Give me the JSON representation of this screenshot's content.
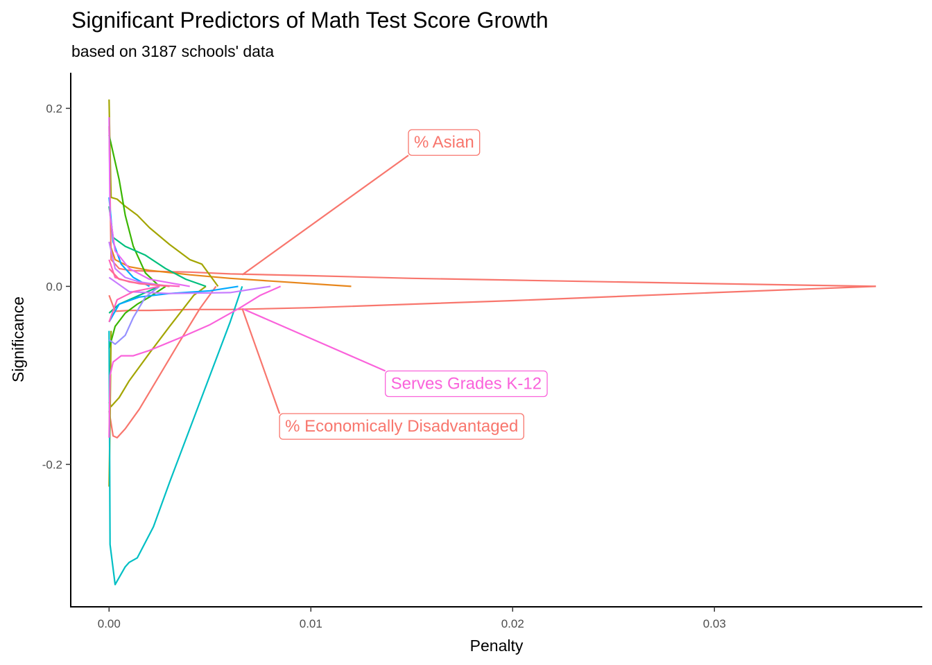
{
  "chart_data": {
    "type": "line",
    "title": "Significant Predictors of Math Test Score Growth",
    "subtitle": "based on 3187 schools' data",
    "xlabel": "Penalty",
    "ylabel": "Significance",
    "xlim": [
      -0.0019,
      0.0403
    ],
    "ylim": [
      -0.36,
      0.24
    ],
    "x_ticks": [
      0,
      0.01,
      0.02,
      0.03
    ],
    "x_tick_labels": [
      "0.00",
      "0.01",
      "0.02",
      "0.03"
    ],
    "y_ticks": [
      -0.2,
      0,
      0.2
    ],
    "y_tick_labels": [
      "-0.2",
      "0.0",
      "0.2"
    ],
    "grid": false,
    "legend": "none",
    "series": [
      {
        "color": "#F8766D",
        "x": [
          0,
          0.0001,
          0.0005,
          0.001,
          0.002,
          0.004,
          0.006,
          0.01,
          0.015,
          0.02,
          0.03,
          0.038
        ],
        "y": [
          0.18,
          0.03,
          0.02,
          0.018,
          0.017,
          0.016,
          0.014,
          0.012,
          0.009,
          0.007,
          0.003,
          0
        ]
      },
      {
        "color": "#F8766D",
        "x": [
          0,
          0.0003,
          0.001,
          0.002,
          0.004,
          0.006,
          0.01,
          0.02,
          0.03,
          0.038
        ],
        "y": [
          -0.01,
          -0.028,
          -0.027,
          -0.027,
          -0.026,
          -0.026,
          -0.024,
          -0.016,
          -0.007,
          0
        ]
      },
      {
        "color": "#F8766D",
        "x": [
          0,
          0.0002,
          0.0004,
          0.0008,
          0.0015,
          0.0025,
          0.0035,
          0.0045,
          0.0053
        ],
        "y": [
          -0.14,
          -0.168,
          -0.17,
          -0.16,
          -0.138,
          -0.1,
          -0.062,
          -0.025,
          0
        ]
      },
      {
        "color": "#E7861B",
        "x": [
          0,
          0.0003,
          0.001,
          0.002,
          0.004,
          0.006,
          0.008,
          0.012
        ],
        "y": [
          0.05,
          0.03,
          0.022,
          0.018,
          0.013,
          0.009,
          0.006,
          0
        ]
      },
      {
        "color": "#A3A500",
        "x": [
          0,
          3e-05,
          0.0001,
          0.0004,
          0.0008,
          0.0014,
          0.002,
          0.003,
          0.004,
          0.0046,
          0.0054
        ],
        "y": [
          0.21,
          0.17,
          0.1,
          0.098,
          0.09,
          0.08,
          0.066,
          0.047,
          0.03,
          0.025,
          0
        ]
      },
      {
        "color": "#A3A500",
        "x": [
          0,
          0.0001,
          0.0005,
          0.001,
          0.002,
          0.003,
          0.0042,
          0.0048
        ],
        "y": [
          -0.13,
          -0.135,
          -0.125,
          -0.106,
          -0.075,
          -0.045,
          -0.01,
          0
        ]
      },
      {
        "color": "#A3A500",
        "x": [
          0,
          5e-05,
          0.0001
        ],
        "y": [
          -0.225,
          -0.15,
          -0.05
        ]
      },
      {
        "color": "#39B600",
        "x": [
          0,
          0.0002,
          0.0005,
          0.0008,
          0.0012,
          0.0018,
          0.0025
        ],
        "y": [
          0.17,
          0.15,
          0.12,
          0.08,
          0.045,
          0.015,
          0
        ]
      },
      {
        "color": "#39B600",
        "x": [
          0,
          0.0003,
          0.0008,
          0.0014,
          0.002,
          0.0028
        ],
        "y": [
          -0.07,
          -0.045,
          -0.03,
          -0.02,
          -0.012,
          0
        ]
      },
      {
        "color": "#00BF7D",
        "x": [
          0,
          0.0002,
          0.0008,
          0.0018,
          0.0028,
          0.0038,
          0.0048
        ],
        "y": [
          0.09,
          0.055,
          0.045,
          0.035,
          0.02,
          0.008,
          0
        ]
      },
      {
        "color": "#00BF7D",
        "x": [
          0,
          0.0005,
          0.0015,
          0.0025
        ],
        "y": [
          -0.03,
          -0.02,
          -0.01,
          0
        ]
      },
      {
        "color": "#00BFC4",
        "x": [
          0,
          5e-05,
          0.0003,
          0.0008,
          0.001,
          0.0014,
          0.0022,
          0.003,
          0.004,
          0.005,
          0.006,
          0.0066
        ],
        "y": [
          -0.05,
          -0.29,
          -0.335,
          -0.315,
          -0.31,
          -0.305,
          -0.27,
          -0.22,
          -0.16,
          -0.1,
          -0.04,
          0
        ]
      },
      {
        "color": "#00A9FF",
        "x": [
          0,
          0.0005,
          0.0015,
          0.003,
          0.005,
          0.0064
        ],
        "y": [
          -0.04,
          -0.02,
          -0.012,
          -0.008,
          -0.005,
          0
        ]
      },
      {
        "color": "#00A9FF",
        "x": [
          0,
          0.0002,
          0.0006,
          0.0012,
          0.002
        ],
        "y": [
          0.1,
          0.05,
          0.025,
          0.01,
          0
        ]
      },
      {
        "color": "#9590FF",
        "x": [
          0,
          0.0003,
          0.0008,
          0.0012,
          0.0018,
          0.0025
        ],
        "y": [
          -0.06,
          -0.065,
          -0.055,
          -0.035,
          -0.012,
          0
        ]
      },
      {
        "color": "#C77CFF",
        "x": [
          0,
          0.001,
          0.003,
          0.006,
          0.008
        ],
        "y": [
          0.01,
          -0.006,
          -0.008,
          -0.007,
          0
        ]
      },
      {
        "color": "#C77CFF",
        "x": [
          0,
          0.0003,
          0.0008,
          0.0015,
          0.003
        ],
        "y": [
          0.05,
          0.02,
          0.01,
          0.005,
          0
        ]
      },
      {
        "color": "#E76BF3",
        "x": [
          0,
          5e-05,
          0.0003,
          0.001,
          0.002,
          0.004
        ],
        "y": [
          0.19,
          0.08,
          0.04,
          0.02,
          0.008,
          0
        ]
      },
      {
        "color": "#FA62DB",
        "x": [
          0,
          5e-05,
          0.0002,
          0.0006,
          0.0012,
          0.002,
          0.0035,
          0.005,
          0.0065,
          0.0075,
          0.0085
        ],
        "y": [
          -0.17,
          -0.1,
          -0.085,
          -0.078,
          -0.078,
          -0.072,
          -0.058,
          -0.043,
          -0.024,
          -0.01,
          0
        ]
      },
      {
        "color": "#FF62BC",
        "x": [
          0,
          0.0003,
          0.001,
          0.002,
          0.0035
        ],
        "y": [
          0.03,
          0.01,
          0.005,
          0.002,
          0
        ]
      },
      {
        "color": "#FF62BC",
        "x": [
          0,
          0.0004,
          0.0012,
          0.0025
        ],
        "y": [
          -0.04,
          -0.015,
          -0.006,
          0
        ]
      },
      {
        "color": "#FF6C91",
        "x": [
          0,
          0.0005,
          0.0015,
          0.003
        ],
        "y": [
          0.02,
          0.008,
          0.003,
          0
        ]
      }
    ],
    "annotations": [
      {
        "text": "% Asian",
        "color": "#F8766D",
        "x": 0.0166,
        "y": 0.162,
        "line_from": [
          0.0066,
          0.013
        ]
      },
      {
        "text": "Serves Grades K-12",
        "color": "#FA62DB",
        "x": 0.0177,
        "y": -0.109,
        "line_from": [
          0.0066,
          -0.025
        ]
      },
      {
        "text": "% Economically Disadvantaged",
        "color": "#F8766D",
        "x": 0.0145,
        "y": -0.157,
        "line_from": [
          0.0066,
          -0.025
        ]
      }
    ]
  }
}
